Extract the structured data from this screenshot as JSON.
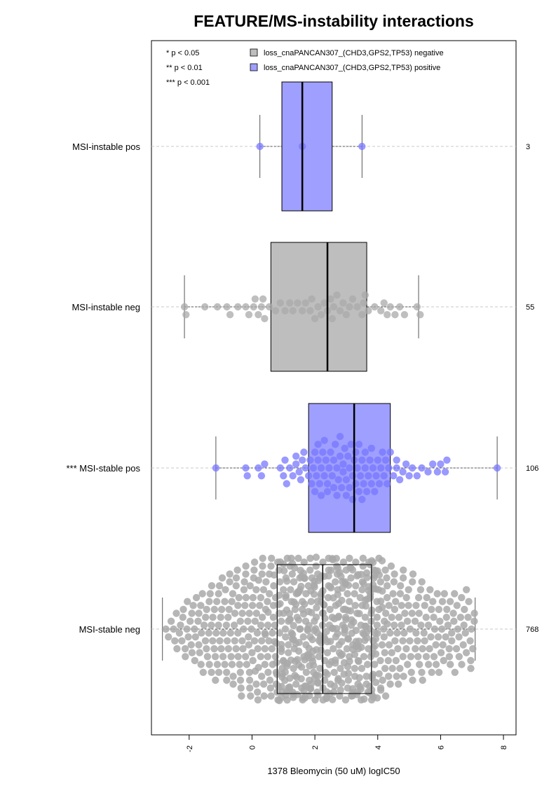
{
  "chart_data": {
    "type": "boxplot-beeswarm",
    "title": "FEATURE/MS-instability interactions",
    "xlabel": "1378 Bleomycin (50 uM) logIC50",
    "xlim": [
      -3.2,
      8.4
    ],
    "xticks": [
      "-2",
      "0",
      "2",
      "4",
      "6",
      "8"
    ],
    "xtick_values": [
      -2,
      0,
      2,
      4,
      6,
      8
    ],
    "significance_legend": [
      "* p < 0.05",
      "** p < 0.01",
      "*** p < 0.001"
    ],
    "legend": [
      {
        "label": "loss_cnaPANCAN307_(CHD3,GPS2,TP53) negative",
        "color": "#bebebe"
      },
      {
        "label": "loss_cnaPANCAN307_(CHD3,GPS2,TP53) positive",
        "color": "#9f9fff"
      }
    ],
    "groups": [
      {
        "label": "MSI-instable pos",
        "n": "3",
        "type": "positive",
        "color": "#9f9fff",
        "point_color": "#7777ff",
        "whisker_low": 0.25,
        "q1": 0.95,
        "median": 1.6,
        "q3": 2.55,
        "whisker_high": 3.5,
        "points": [
          0.25,
          1.6,
          3.5
        ]
      },
      {
        "label": "MSI-instable neg",
        "n": "55",
        "type": "negative",
        "color": "#bebebe",
        "point_color": "#a9a9a9",
        "whisker_low": -2.15,
        "q1": 0.6,
        "median": 2.4,
        "q3": 3.65,
        "whisker_high": 5.3,
        "points": [
          -2.15,
          -2.1,
          -1.5,
          -1.1,
          -0.8,
          -0.7,
          -0.45,
          -0.2,
          -0.1,
          0.05,
          0.1,
          0.2,
          0.3,
          0.35,
          0.4,
          0.55,
          0.75,
          0.9,
          1.05,
          1.2,
          1.3,
          1.45,
          1.6,
          1.7,
          1.85,
          1.9,
          2.0,
          2.1,
          2.2,
          2.3,
          2.4,
          2.5,
          2.55,
          2.6,
          2.7,
          2.8,
          2.9,
          3.0,
          3.1,
          3.2,
          3.35,
          3.5,
          3.55,
          3.6,
          3.7,
          3.9,
          4.1,
          4.2,
          4.3,
          4.4,
          4.55,
          4.7,
          4.85,
          5.25,
          5.35
        ]
      },
      {
        "label": "*** MSI-stable pos",
        "n": "106",
        "type": "positive",
        "color": "#9f9fff",
        "point_color": "#7777ff",
        "whisker_low": -1.15,
        "q1": 1.8,
        "median": 3.25,
        "q3": 4.4,
        "whisker_high": 7.8,
        "points": [
          -1.15,
          -0.2,
          -0.15,
          0.2,
          0.3,
          0.4,
          0.9,
          1.0,
          1.05,
          1.1,
          1.2,
          1.3,
          1.4,
          1.5,
          1.55,
          1.6,
          1.65,
          1.7,
          1.8,
          1.85,
          1.9,
          1.95,
          2.0,
          2.05,
          2.1,
          2.15,
          2.2,
          2.25,
          2.3,
          2.35,
          2.4,
          2.45,
          2.5,
          2.55,
          2.6,
          2.65,
          2.7,
          2.75,
          2.8,
          2.85,
          2.9,
          2.95,
          3.0,
          3.05,
          3.1,
          3.15,
          3.2,
          3.25,
          3.3,
          3.35,
          3.4,
          3.45,
          3.5,
          3.55,
          3.6,
          3.65,
          3.7,
          3.75,
          3.8,
          3.85,
          3.9,
          3.95,
          4.0,
          4.05,
          4.1,
          4.15,
          4.2,
          4.25,
          4.3,
          4.35,
          4.4,
          4.5,
          4.6,
          4.7,
          4.8,
          4.9,
          5.0,
          5.1,
          5.25,
          5.4,
          5.6,
          5.75,
          5.9,
          6.0,
          6.15,
          6.2,
          2.0,
          2.3,
          2.6,
          2.9,
          3.2,
          3.5,
          3.8,
          2.1,
          2.4,
          2.7,
          3.0,
          3.3,
          3.6,
          2.2,
          2.8,
          3.1,
          3.4,
          1.4,
          4.6,
          7.8
        ]
      },
      {
        "label": "MSI-stable neg",
        "n": "768",
        "type": "negative",
        "color": "#bebebe",
        "point_color": "#a9a9a9",
        "whisker_low": -2.85,
        "q1": 0.8,
        "median": 2.25,
        "q3": 3.8,
        "whisker_high": 7.1,
        "points_generated": true,
        "count": 768
      }
    ]
  }
}
